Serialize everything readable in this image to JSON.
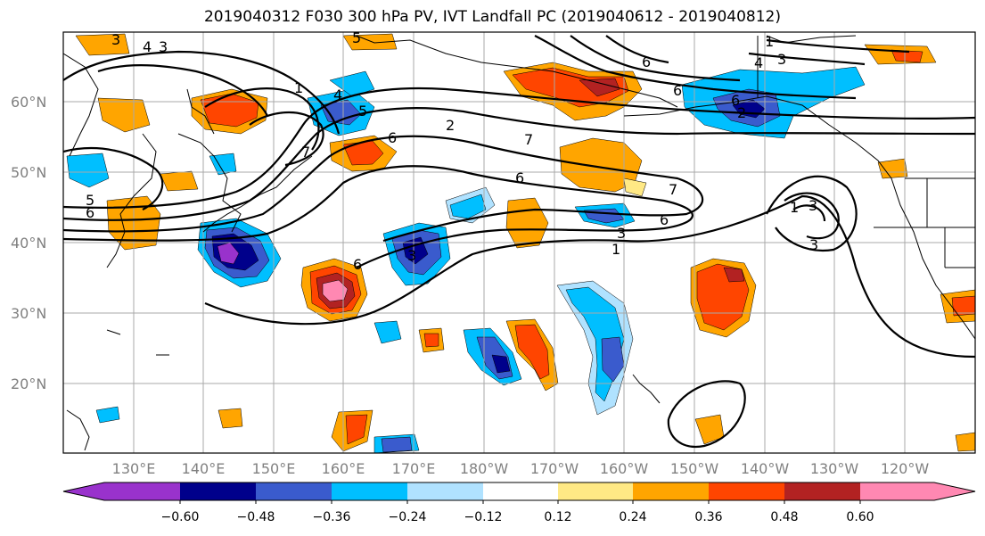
{
  "title": "2019040312 F030 300 hPa PV, IVT Landfall PC (2019040612 - 2019040812)",
  "map": {
    "lat_ticks": [
      "60°N",
      "50°N",
      "40°N",
      "30°N",
      "20°N"
    ],
    "lon_ticks": [
      "130°E",
      "140°E",
      "150°E",
      "160°E",
      "170°E",
      "180°W",
      "170°W",
      "160°W",
      "150°W",
      "140°W",
      "130°W",
      "120°W"
    ],
    "tick_label_color": "#808080",
    "contour_labels": [
      "3",
      "4",
      "3",
      "5",
      "1",
      "4",
      "6",
      "5",
      "2",
      "7",
      "6",
      "7",
      "6",
      "3",
      "1",
      "6",
      "7",
      "6",
      "5",
      "6",
      "6",
      "3",
      "1",
      "3",
      "3",
      "6",
      "1",
      "4",
      "3",
      "2"
    ]
  },
  "colorbar": {
    "colors": [
      "#9932CC",
      "#00008B",
      "#3A5BCD",
      "#00BFFF",
      "#B0E2FF",
      "#FFFFFF",
      "#FFE985",
      "#FFA500",
      "#FF4500",
      "#B22222",
      "#FF88B2"
    ],
    "tick_labels": [
      "−0.60",
      "−0.48",
      "−0.36",
      "−0.24",
      "−0.12",
      "0.12",
      "0.24",
      "0.36",
      "0.48",
      "0.60"
    ]
  }
}
